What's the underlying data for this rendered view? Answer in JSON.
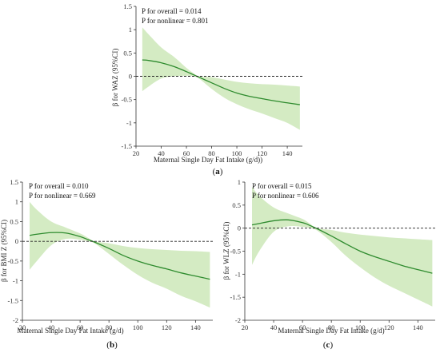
{
  "chart_data": [
    {
      "type": "line",
      "panel_label": "(a)",
      "panel_letter": "a",
      "annotation": [
        "P for overall = 0.014",
        "P for nonlinear = 0.801"
      ],
      "xlabel": "Maternal Single Day Fat Intake (g/d))",
      "ylabel": "β for WAZ (95%CI)",
      "xlim": [
        20,
        152
      ],
      "ylim": [
        -1.5,
        1.5
      ],
      "xticks": [
        20,
        40,
        60,
        80,
        100,
        120,
        140
      ],
      "yticks": [
        -1.5,
        -1.0,
        -0.5,
        0.0,
        0.5,
        1.0,
        1.5
      ],
      "reference_line": 0.0,
      "series": [
        {
          "x": [
            25,
            30,
            40,
            50,
            60,
            65,
            70,
            80,
            90,
            100,
            110,
            120,
            130,
            140,
            150
          ],
          "y": [
            0.35,
            0.34,
            0.29,
            0.21,
            0.1,
            0.04,
            -0.02,
            -0.14,
            -0.26,
            -0.36,
            -0.43,
            -0.48,
            -0.53,
            -0.57,
            -0.61
          ],
          "ci_upper": [
            1.05,
            0.9,
            0.62,
            0.42,
            0.18,
            0.08,
            0.0,
            -0.02,
            -0.07,
            -0.12,
            -0.15,
            -0.17,
            -0.18,
            -0.2,
            -0.22
          ],
          "ci_lower": [
            -0.32,
            -0.22,
            -0.05,
            0.0,
            0.01,
            0.0,
            -0.05,
            -0.27,
            -0.46,
            -0.6,
            -0.71,
            -0.8,
            -0.9,
            -1.0,
            -1.15
          ]
        }
      ],
      "colors": {
        "line": "#2e8b2e",
        "band": "#d4ebc3"
      }
    },
    {
      "type": "line",
      "panel_label": "(b)",
      "panel_letter": "b",
      "annotation": [
        "P for overall = 0.010",
        "P for nonlinear = 0.669"
      ],
      "xlabel": "Maternal Single Day Fat Intake (g/d)",
      "ylabel": "β for BMI Z (95%CI)",
      "xlim": [
        20,
        152
      ],
      "ylim": [
        -2.0,
        1.5
      ],
      "xticks": [
        20,
        40,
        60,
        80,
        100,
        120,
        140
      ],
      "yticks": [
        -2.0,
        -1.5,
        -1.0,
        -0.5,
        0.0,
        0.5,
        1.0,
        1.5
      ],
      "reference_line": 0.0,
      "series": [
        {
          "x": [
            25,
            30,
            40,
            50,
            60,
            65,
            70,
            80,
            90,
            100,
            110,
            120,
            130,
            140,
            150
          ],
          "y": [
            0.15,
            0.18,
            0.22,
            0.21,
            0.12,
            0.05,
            -0.02,
            -0.18,
            -0.36,
            -0.5,
            -0.61,
            -0.7,
            -0.8,
            -0.88,
            -0.96
          ],
          "ci_upper": [
            1.0,
            0.8,
            0.5,
            0.35,
            0.2,
            0.1,
            0.0,
            -0.05,
            -0.12,
            -0.17,
            -0.2,
            -0.22,
            -0.24,
            -0.25,
            -0.27
          ],
          "ci_lower": [
            -0.72,
            -0.5,
            -0.1,
            0.06,
            0.04,
            0.0,
            -0.05,
            -0.32,
            -0.6,
            -0.85,
            -1.05,
            -1.2,
            -1.38,
            -1.52,
            -1.68
          ]
        }
      ],
      "colors": {
        "line": "#2e8b2e",
        "band": "#d4ebc3"
      }
    },
    {
      "type": "line",
      "panel_label": "(c)",
      "panel_letter": "c",
      "annotation": [
        "P for overall = 0.015",
        "P for nonlinear = 0.606"
      ],
      "xlabel": "Maternal Single Day Fat Intake (g/d)",
      "ylabel": "β for WLZ (95%CI)",
      "xlim": [
        20,
        152
      ],
      "ylim": [
        -2.0,
        1.0
      ],
      "xticks": [
        20,
        40,
        60,
        80,
        100,
        120,
        140
      ],
      "yticks": [
        -2.0,
        -1.5,
        -1.0,
        -0.5,
        0.0,
        0.5,
        1.0
      ],
      "reference_line": 0.0,
      "series": [
        {
          "x": [
            25,
            30,
            40,
            50,
            60,
            65,
            70,
            80,
            90,
            100,
            110,
            120,
            130,
            140,
            150
          ],
          "y": [
            0.07,
            0.1,
            0.16,
            0.18,
            0.12,
            0.06,
            -0.01,
            -0.17,
            -0.34,
            -0.5,
            -0.62,
            -0.72,
            -0.82,
            -0.9,
            -0.98
          ],
          "ci_upper": [
            0.9,
            0.7,
            0.45,
            0.32,
            0.2,
            0.1,
            0.0,
            -0.04,
            -0.1,
            -0.14,
            -0.17,
            -0.2,
            -0.22,
            -0.24,
            -0.26
          ],
          "ci_lower": [
            -0.8,
            -0.5,
            -0.08,
            0.04,
            0.03,
            0.0,
            -0.05,
            -0.3,
            -0.6,
            -0.85,
            -1.07,
            -1.25,
            -1.4,
            -1.55,
            -1.7
          ]
        }
      ],
      "colors": {
        "line": "#2e8b2e",
        "band": "#d4ebc3"
      }
    }
  ]
}
